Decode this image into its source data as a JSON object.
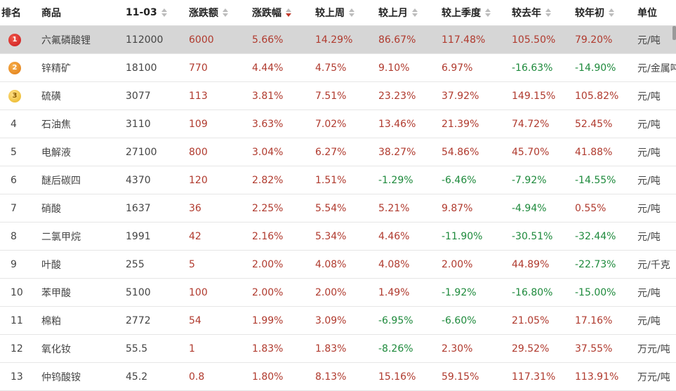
{
  "columns": [
    {
      "label": "排名",
      "sortable": false
    },
    {
      "label": "商品",
      "sortable": false
    },
    {
      "label": "11-03",
      "sortable": true,
      "state": "none"
    },
    {
      "label": "涨跌额",
      "sortable": true,
      "state": "none"
    },
    {
      "label": "涨跌幅",
      "sortable": true,
      "state": "desc"
    },
    {
      "label": "较上周",
      "sortable": true,
      "state": "none"
    },
    {
      "label": "较上月",
      "sortable": true,
      "state": "none"
    },
    {
      "label": "较上季度",
      "sortable": true,
      "state": "none"
    },
    {
      "label": "较去年",
      "sortable": true,
      "state": "none"
    },
    {
      "label": "较年初",
      "sortable": true,
      "state": "none"
    },
    {
      "label": "单位",
      "sortable": false
    }
  ],
  "rows": [
    {
      "rank": "1",
      "name": "六氟磷酸锂",
      "price": "112000",
      "change": "6000",
      "pct": "5.66%",
      "week": "14.29%",
      "month": "86.67%",
      "quarter": "117.48%",
      "year": "105.50%",
      "ytd": "79.20%",
      "unit": "元/吨",
      "selected": true
    },
    {
      "rank": "2",
      "name": "锌精矿",
      "price": "18100",
      "change": "770",
      "pct": "4.44%",
      "week": "4.75%",
      "month": "9.10%",
      "quarter": "6.97%",
      "year": "-16.63%",
      "ytd": "-14.90%",
      "unit": "元/金属吨"
    },
    {
      "rank": "3",
      "name": "硫磺",
      "price": "3077",
      "change": "113",
      "pct": "3.81%",
      "week": "7.51%",
      "month": "23.23%",
      "quarter": "37.92%",
      "year": "149.15%",
      "ytd": "105.82%",
      "unit": "元/吨"
    },
    {
      "rank": "4",
      "name": "石油焦",
      "price": "3110",
      "change": "109",
      "pct": "3.63%",
      "week": "7.02%",
      "month": "13.46%",
      "quarter": "21.39%",
      "year": "74.72%",
      "ytd": "52.45%",
      "unit": "元/吨"
    },
    {
      "rank": "5",
      "name": "电解液",
      "price": "27100",
      "change": "800",
      "pct": "3.04%",
      "week": "6.27%",
      "month": "38.27%",
      "quarter": "54.86%",
      "year": "45.70%",
      "ytd": "41.88%",
      "unit": "元/吨"
    },
    {
      "rank": "6",
      "name": "醚后碳四",
      "price": "4370",
      "change": "120",
      "pct": "2.82%",
      "week": "1.51%",
      "month": "-1.29%",
      "quarter": "-6.46%",
      "year": "-7.92%",
      "ytd": "-14.55%",
      "unit": "元/吨"
    },
    {
      "rank": "7",
      "name": "硝酸",
      "price": "1637",
      "change": "36",
      "pct": "2.25%",
      "week": "5.54%",
      "month": "5.21%",
      "quarter": "9.87%",
      "year": "-4.94%",
      "ytd": "0.55%",
      "unit": "元/吨"
    },
    {
      "rank": "8",
      "name": "二氯甲烷",
      "price": "1991",
      "change": "42",
      "pct": "2.16%",
      "week": "5.34%",
      "month": "4.46%",
      "quarter": "-11.90%",
      "year": "-30.51%",
      "ytd": "-32.44%",
      "unit": "元/吨"
    },
    {
      "rank": "9",
      "name": "叶酸",
      "price": "255",
      "change": "5",
      "pct": "2.00%",
      "week": "4.08%",
      "month": "4.08%",
      "quarter": "2.00%",
      "year": "44.89%",
      "ytd": "-22.73%",
      "unit": "元/千克"
    },
    {
      "rank": "10",
      "name": "苯甲酸",
      "price": "5100",
      "change": "100",
      "pct": "2.00%",
      "week": "2.00%",
      "month": "1.49%",
      "quarter": "-1.92%",
      "year": "-16.80%",
      "ytd": "-15.00%",
      "unit": "元/吨"
    },
    {
      "rank": "11",
      "name": "棉粕",
      "price": "2772",
      "change": "54",
      "pct": "1.99%",
      "week": "3.09%",
      "month": "-6.95%",
      "quarter": "-6.60%",
      "year": "21.05%",
      "ytd": "17.16%",
      "unit": "元/吨"
    },
    {
      "rank": "12",
      "name": "氧化钕",
      "price": "55.5",
      "change": "1",
      "pct": "1.83%",
      "week": "1.83%",
      "month": "-8.26%",
      "quarter": "2.30%",
      "year": "29.52%",
      "ytd": "37.55%",
      "unit": "万元/吨"
    },
    {
      "rank": "13",
      "name": "仲钨酸铵",
      "price": "45.2",
      "change": "0.8",
      "pct": "1.80%",
      "week": "8.13%",
      "month": "15.16%",
      "quarter": "59.15%",
      "year": "117.31%",
      "ytd": "113.91%",
      "unit": "万元/吨"
    }
  ],
  "colors": {
    "up": "#b03a2e",
    "down": "#1e8a3c",
    "selected": "#d6d6d6"
  }
}
